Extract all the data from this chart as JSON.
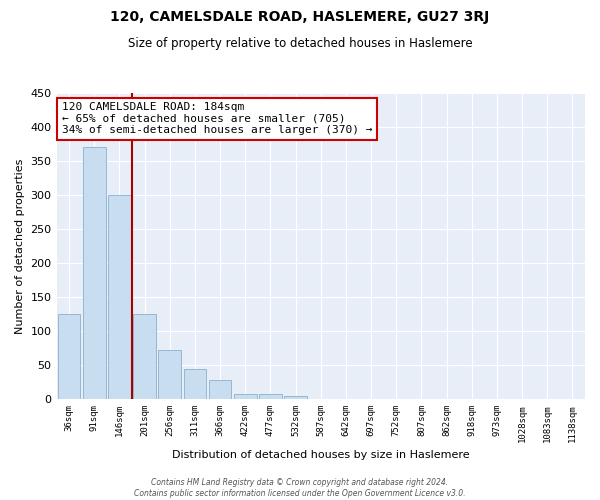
{
  "title": "120, CAMELSDALE ROAD, HASLEMERE, GU27 3RJ",
  "subtitle": "Size of property relative to detached houses in Haslemere",
  "xlabel": "Distribution of detached houses by size in Haslemere",
  "ylabel": "Number of detached properties",
  "bar_labels": [
    "36sqm",
    "91sqm",
    "146sqm",
    "201sqm",
    "256sqm",
    "311sqm",
    "366sqm",
    "422sqm",
    "477sqm",
    "532sqm",
    "587sqm",
    "642sqm",
    "697sqm",
    "752sqm",
    "807sqm",
    "862sqm",
    "918sqm",
    "973sqm",
    "1028sqm",
    "1083sqm",
    "1138sqm"
  ],
  "bar_values": [
    125,
    370,
    300,
    125,
    72,
    44,
    28,
    8,
    8,
    5,
    0,
    0,
    0,
    0,
    0,
    0,
    1,
    0,
    0,
    1,
    1
  ],
  "bar_color": "#c8ddf0",
  "bar_edgecolor": "#8ab0cc",
  "vline_color": "#aa0000",
  "vline_pos": 2.5,
  "ylim": [
    0,
    450
  ],
  "yticks": [
    0,
    50,
    100,
    150,
    200,
    250,
    300,
    350,
    400,
    450
  ],
  "annotation_title": "120 CAMELSDALE ROAD: 184sqm",
  "annotation_line1": "← 65% of detached houses are smaller (705)",
  "annotation_line2": "34% of semi-detached houses are larger (370) →",
  "annotation_box_facecolor": "#ffffff",
  "annotation_box_edgecolor": "#cc0000",
  "footer1": "Contains HM Land Registry data © Crown copyright and database right 2024.",
  "footer2": "Contains public sector information licensed under the Open Government Licence v3.0.",
  "bg_color": "#ffffff",
  "plot_bg_color": "#e8eef8",
  "grid_color": "#ffffff",
  "title_fontsize": 10,
  "subtitle_fontsize": 8.5,
  "tick_fontsize": 6.5,
  "ylabel_fontsize": 8,
  "xlabel_fontsize": 8
}
